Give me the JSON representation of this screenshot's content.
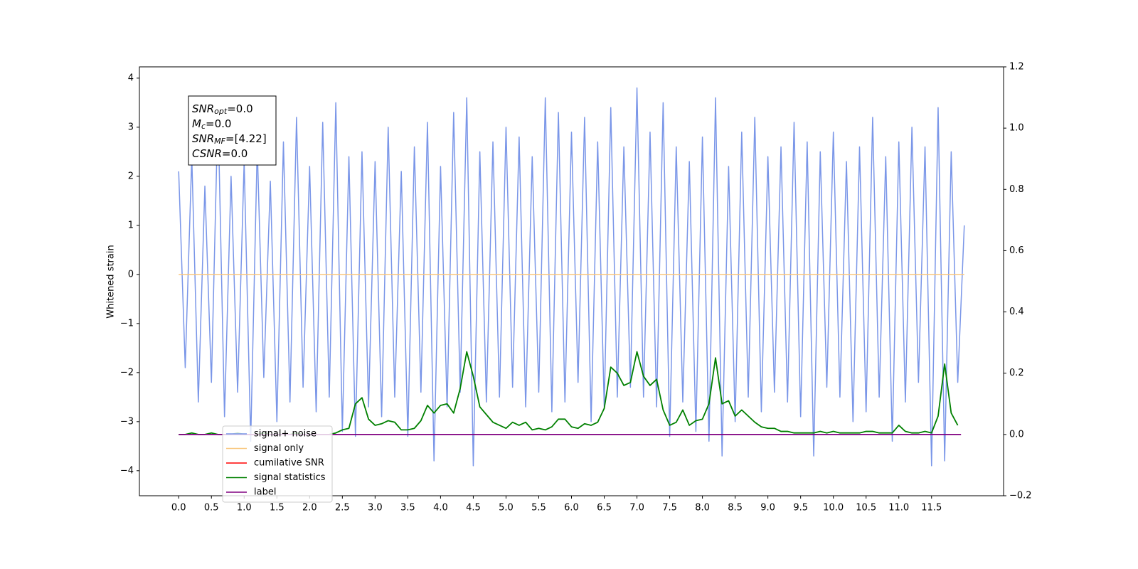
{
  "chart_data": {
    "type": "line",
    "y_label": "Whitened strain",
    "xlim": [
      -0.6,
      12.6
    ],
    "ylim": [
      -4.51,
      4.23
    ],
    "y2lim": [
      -0.2,
      1.2
    ],
    "grid": false,
    "xticks": [
      {
        "value": 0,
        "label": "0.0"
      },
      0.5,
      {
        "value": 1,
        "label": "1.0"
      },
      1.5,
      {
        "value": 2,
        "label": "2.0"
      },
      2.5,
      {
        "value": 3,
        "label": "3.0"
      },
      3.5,
      {
        "value": 4,
        "label": "4.0"
      },
      4.5,
      {
        "value": 5,
        "label": "5.0"
      },
      5.5,
      {
        "value": 6,
        "label": "6.0"
      },
      6.5,
      {
        "value": 7,
        "label": "7.0"
      },
      7.5,
      {
        "value": 8,
        "label": "8.0"
      },
      8.5,
      {
        "value": 9,
        "label": "9.0"
      },
      9.5,
      {
        "value": 10,
        "label": "10.0"
      },
      10.5,
      {
        "value": 11,
        "label": "11.0"
      },
      11.5
    ],
    "yticks": [
      {
        "value": -4,
        "label": "−4"
      },
      {
        "value": -3,
        "label": "−3"
      },
      {
        "value": -2,
        "label": "−2"
      },
      {
        "value": -1,
        "label": "−1"
      },
      0,
      1,
      2,
      3,
      4
    ],
    "y2ticks": [
      {
        "value": -0.2,
        "label": "−0.2"
      },
      {
        "value": 0,
        "label": "0.0"
      },
      0.2,
      0.4,
      0.6,
      0.8,
      {
        "value": 1,
        "label": "1.0"
      },
      1.2
    ],
    "annotation": [
      {
        "symbol": "SNR",
        "subscript": "opt",
        "text": "=0.0"
      },
      {
        "symbol": "M",
        "subscript": "c",
        "text": "=0.0"
      },
      {
        "symbol": "SNR",
        "subscript": "MF",
        "text": "=[4.22]"
      },
      {
        "symbol": "CSNR",
        "subscript": null,
        "text": "=0.0"
      }
    ],
    "series": [
      {
        "name": "signal+ noise",
        "color": "#7a96e8",
        "axis": "y",
        "x": [
          0.0,
          0.1,
          0.2,
          0.3,
          0.4,
          0.5,
          0.6,
          0.7,
          0.8,
          0.9,
          1.0,
          1.1,
          1.2,
          1.3,
          1.4,
          1.5,
          1.6,
          1.7,
          1.8,
          1.9,
          2.0,
          2.1,
          2.2,
          2.3,
          2.4,
          2.5,
          2.6,
          2.7,
          2.8,
          2.9,
          3.0,
          3.1,
          3.2,
          3.3,
          3.4,
          3.5,
          3.6,
          3.7,
          3.8,
          3.9,
          4.0,
          4.1,
          4.2,
          4.3,
          4.4,
          4.5,
          4.6,
          4.7,
          4.8,
          4.9,
          5.0,
          5.1,
          5.2,
          5.3,
          5.4,
          5.5,
          5.6,
          5.7,
          5.8,
          5.9,
          6.0,
          6.1,
          6.2,
          6.3,
          6.4,
          6.5,
          6.6,
          6.7,
          6.8,
          6.9,
          7.0,
          7.1,
          7.2,
          7.3,
          7.4,
          7.5,
          7.6,
          7.7,
          7.8,
          7.9,
          8.0,
          8.1,
          8.2,
          8.3,
          8.4,
          8.5,
          8.6,
          8.7,
          8.8,
          8.9,
          9.0,
          9.1,
          9.2,
          9.3,
          9.4,
          9.5,
          9.6,
          9.7,
          9.8,
          9.9,
          10.0,
          10.1,
          10.2,
          10.3,
          10.4,
          10.5,
          10.6,
          10.7,
          10.8,
          10.9,
          11.0,
          11.1,
          11.2,
          11.3,
          11.4,
          11.5,
          11.6,
          11.7,
          11.8,
          11.9,
          12.0
        ],
        "values": [
          2.1,
          -1.9,
          2.4,
          -2.6,
          1.8,
          -2.2,
          3.4,
          -2.9,
          2.0,
          -2.4,
          2.3,
          -3.4,
          2.6,
          -2.1,
          1.9,
          -3.0,
          2.7,
          -2.6,
          3.2,
          -2.3,
          2.2,
          -2.8,
          3.1,
          -2.5,
          3.5,
          -3.2,
          2.4,
          -3.3,
          2.5,
          -2.7,
          2.3,
          -2.9,
          3.0,
          -2.5,
          2.1,
          -3.3,
          2.6,
          -2.4,
          3.1,
          -3.8,
          2.2,
          -2.7,
          3.3,
          -2.4,
          3.6,
          -3.9,
          2.5,
          -2.6,
          2.7,
          -2.5,
          3.0,
          -2.3,
          2.8,
          -2.7,
          2.4,
          -2.4,
          3.6,
          -2.8,
          3.3,
          -2.6,
          2.9,
          -2.2,
          3.2,
          -3.0,
          2.7,
          -2.7,
          3.4,
          -2.5,
          2.6,
          -2.3,
          3.8,
          -2.5,
          2.9,
          -2.7,
          3.5,
          -3.3,
          2.6,
          -2.6,
          2.3,
          -3.2,
          2.8,
          -3.4,
          3.6,
          -3.7,
          2.2,
          -3.0,
          2.9,
          -2.5,
          3.2,
          -2.8,
          2.4,
          -2.4,
          2.6,
          -2.6,
          3.1,
          -2.9,
          2.7,
          -3.7,
          2.5,
          -2.3,
          2.9,
          -2.5,
          2.3,
          -3.0,
          2.6,
          -2.8,
          3.2,
          -2.5,
          2.4,
          -3.4,
          2.7,
          -2.6,
          3.0,
          -2.2,
          2.6,
          -3.9,
          3.4,
          -3.8,
          2.5,
          -2.2,
          1.0
        ]
      },
      {
        "name": "signal only",
        "color": "#f9c77d",
        "axis": "y",
        "x": [
          0.0,
          12.0
        ],
        "values": [
          0,
          0
        ]
      },
      {
        "name": "cumilative SNR",
        "color": "#ff0000",
        "axis": "y2",
        "x": [],
        "values": []
      },
      {
        "name": "signal statistics",
        "color": "#008000",
        "axis": "y2",
        "x": [
          0.0,
          0.1,
          0.2,
          0.3,
          0.4,
          0.5,
          0.6,
          0.7,
          0.8,
          0.9,
          1.0,
          1.1,
          1.2,
          1.3,
          1.4,
          1.5,
          1.6,
          1.7,
          1.8,
          1.9,
          2.0,
          2.1,
          2.2,
          2.3,
          2.4,
          2.5,
          2.6,
          2.7,
          2.8,
          2.9,
          3.0,
          3.1,
          3.2,
          3.3,
          3.4,
          3.5,
          3.6,
          3.7,
          3.8,
          3.9,
          4.0,
          4.1,
          4.2,
          4.3,
          4.4,
          4.5,
          4.6,
          4.7,
          4.8,
          4.9,
          5.0,
          5.1,
          5.2,
          5.3,
          5.4,
          5.5,
          5.6,
          5.7,
          5.8,
          5.9,
          6.0,
          6.1,
          6.2,
          6.3,
          6.4,
          6.5,
          6.6,
          6.7,
          6.8,
          6.9,
          7.0,
          7.1,
          7.2,
          7.3,
          7.4,
          7.5,
          7.6,
          7.7,
          7.8,
          7.9,
          8.0,
          8.1,
          8.2,
          8.3,
          8.4,
          8.5,
          8.6,
          8.7,
          8.8,
          8.9,
          9.0,
          9.1,
          9.2,
          9.3,
          9.4,
          9.5,
          9.6,
          9.7,
          9.8,
          9.9,
          10.0,
          10.1,
          10.2,
          10.3,
          10.4,
          10.5,
          10.6,
          10.7,
          10.8,
          10.9,
          11.0,
          11.1,
          11.2,
          11.3,
          11.4,
          11.5,
          11.6,
          11.7,
          11.8,
          11.9
        ],
        "values": [
          0,
          0,
          0.005,
          0,
          0,
          0.005,
          0,
          0,
          0,
          0.005,
          0,
          0,
          0,
          0.005,
          0,
          0,
          0,
          0,
          0.005,
          0,
          0,
          0,
          0,
          0,
          0.005,
          0.015,
          0.02,
          0.1,
          0.12,
          0.05,
          0.03,
          0.035,
          0.045,
          0.04,
          0.015,
          0.015,
          0.02,
          0.045,
          0.095,
          0.07,
          0.095,
          0.1,
          0.07,
          0.15,
          0.27,
          0.19,
          0.09,
          0.065,
          0.04,
          0.03,
          0.02,
          0.04,
          0.03,
          0.04,
          0.015,
          0.02,
          0.015,
          0.025,
          0.05,
          0.05,
          0.025,
          0.02,
          0.035,
          0.03,
          0.04,
          0.085,
          0.22,
          0.2,
          0.16,
          0.17,
          0.27,
          0.19,
          0.16,
          0.18,
          0.08,
          0.03,
          0.04,
          0.08,
          0.03,
          0.045,
          0.05,
          0.1,
          0.25,
          0.1,
          0.11,
          0.06,
          0.08,
          0.06,
          0.04,
          0.025,
          0.02,
          0.02,
          0.01,
          0.01,
          0.005,
          0.005,
          0.005,
          0.005,
          0.01,
          0.005,
          0.01,
          0.005,
          0.005,
          0.005,
          0.005,
          0.01,
          0.01,
          0.005,
          0.005,
          0.005,
          0.03,
          0.01,
          0.005,
          0.005,
          0.01,
          0.005,
          0.06,
          0.23,
          0.07,
          0.03
        ]
      },
      {
        "name": "label",
        "color": "#800080",
        "axis": "y2",
        "x": [
          0.0,
          11.95
        ],
        "values": [
          0,
          0
        ]
      }
    ]
  }
}
